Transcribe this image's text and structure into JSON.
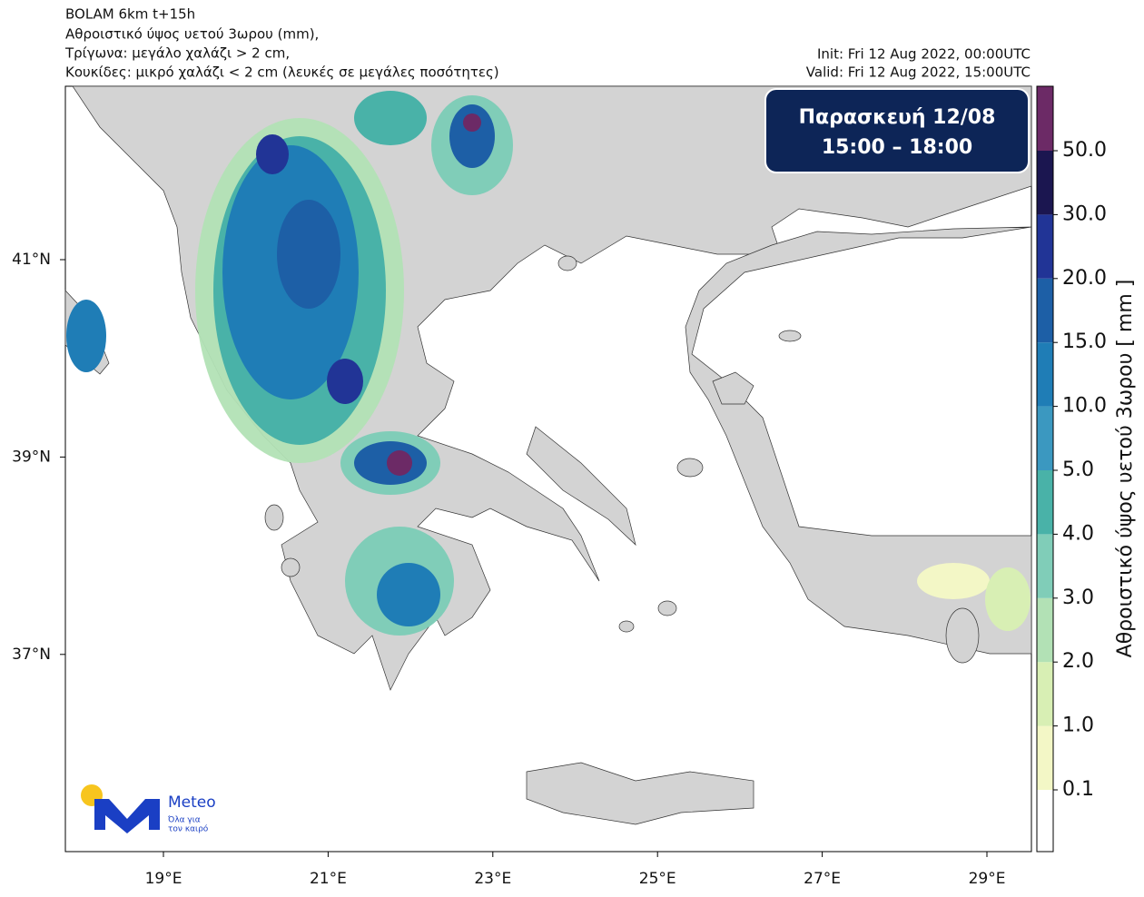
{
  "header": {
    "lines": [
      "BOLAM 6km t+15h",
      "Αθροιστικό ύψος υετού 3ωρου (mm),",
      "Τρίγωνα: μεγάλο χαλάζι > 2 cm,",
      "Κουκίδες: μικρό χαλάζι < 2 cm (λευκές σε μεγάλες ποσότητες)"
    ],
    "init": "Init: Fri 12 Aug 2022, 00:00UTC",
    "valid": "Valid: Fri 12 Aug 2022, 15:00UTC"
  },
  "badge": {
    "day": "Παρασκευή  12/08",
    "time": "15:00 – 18:00"
  },
  "map": {
    "lat_ticks": [
      {
        "value": 41,
        "label": "41°N"
      },
      {
        "value": 39,
        "label": "39°N"
      },
      {
        "value": 37,
        "label": "37°N"
      }
    ],
    "lon_ticks": [
      {
        "value": 19,
        "label": "19°E"
      },
      {
        "value": 21,
        "label": "21°E"
      },
      {
        "value": 23,
        "label": "23°E"
      },
      {
        "value": 25,
        "label": "25°E"
      },
      {
        "value": 27,
        "label": "27°E"
      },
      {
        "value": 29,
        "label": "29°E"
      }
    ]
  },
  "colorbar": {
    "label": "Αθροιστικό ύψος υετού 3ωρου [ mm ]",
    "ticks": [
      0.1,
      {
        "value": 1,
        "label": "1.0"
      },
      {
        "value": 2,
        "label": "2.0"
      },
      {
        "value": 3,
        "label": "3.0"
      },
      {
        "value": 4,
        "label": "4.0"
      },
      {
        "value": 5,
        "label": "5.0"
      },
      {
        "value": 10,
        "label": "10.0"
      },
      {
        "value": 15,
        "label": "15.0"
      },
      {
        "value": 20,
        "label": "20.0"
      },
      {
        "value": 30,
        "label": "30.0"
      },
      {
        "value": 50,
        "label": "50.0"
      }
    ],
    "colors": [
      "#ffffff",
      "#f3f7c6",
      "#d8efb4",
      "#b2e1b5",
      "#80cdb8",
      "#49b2a8",
      "#3b98c0",
      "#1f7db6",
      "#1d5fa6",
      "#213496",
      "#1b1650",
      "#6c2a66"
    ]
  },
  "logo": {
    "name": "Meteo",
    "tagline1": "Όλα για",
    "tagline2": "τον καιρό"
  }
}
